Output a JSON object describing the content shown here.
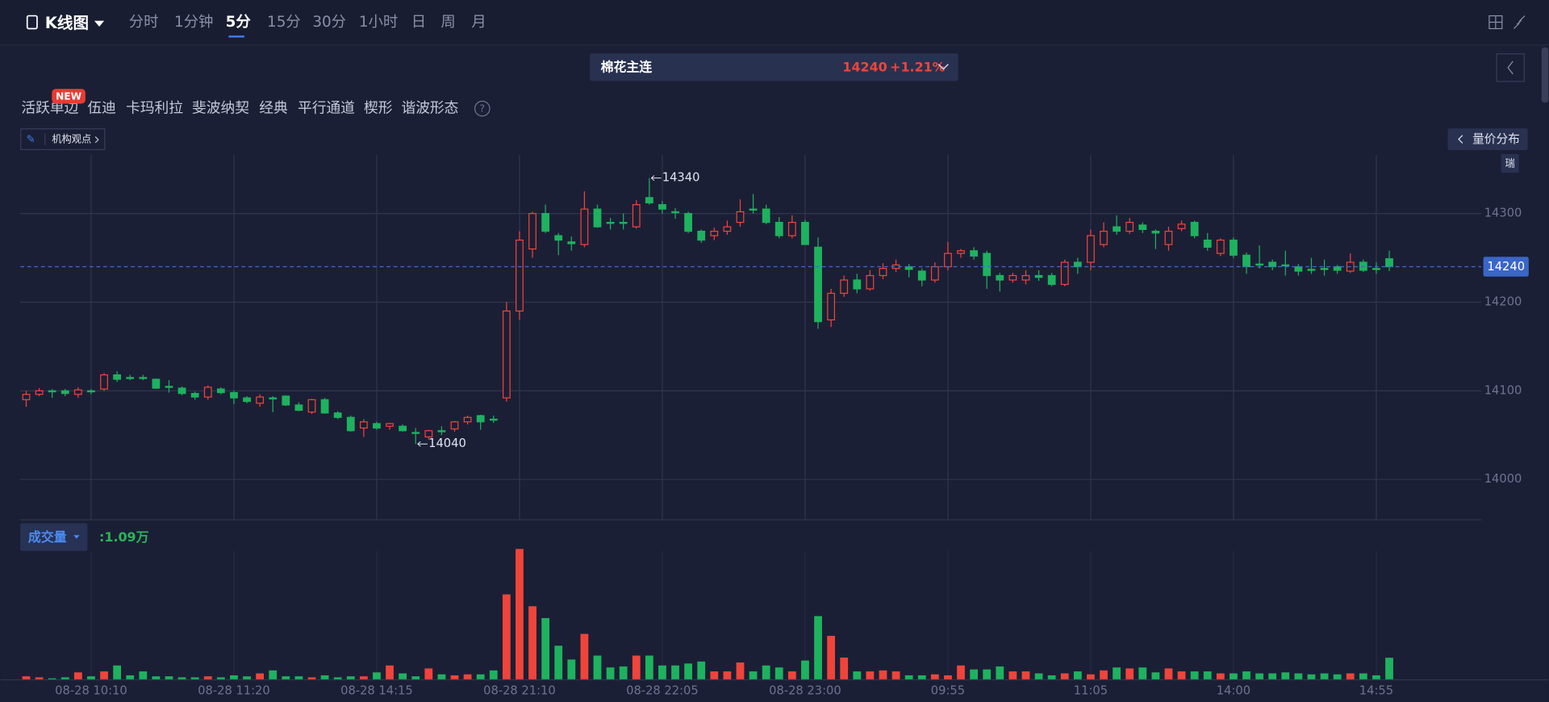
{
  "ui": {
    "chart_kind": "K线图",
    "periods": [
      "分时",
      "1分钟",
      "5分",
      "15分",
      "30分",
      "1小时",
      "日",
      "周",
      "月"
    ],
    "selected_period": "5分",
    "symbol": "棉花主连",
    "change": "+1.21%",
    "tools": [
      "活跃单边",
      "伍迪",
      "卡玛利拉",
      "斐波纳契",
      "经典",
      "平行通道",
      "楔形",
      "谐波形态"
    ],
    "new_badge": "NEW",
    "help": "?",
    "opinion": "机构观点",
    "profile": "量价分布",
    "side_tag": "瑞",
    "volume_title": "成交量",
    "volume_readout": ":1.09万"
  },
  "chart_data": {
    "type": "candlestick",
    "categories": [
      null,
      null,
      null,
      null,
      null,
      "08-28 10:10",
      null,
      null,
      null,
      null,
      null,
      null,
      null,
      null,
      null,
      null,
      "08-28 11:20",
      null,
      null,
      null,
      null,
      null,
      null,
      null,
      null,
      null,
      null,
      "08-28 14:15",
      null,
      null,
      null,
      null,
      null,
      null,
      null,
      null,
      null,
      null,
      "08-28 21:10",
      null,
      null,
      null,
      null,
      null,
      null,
      null,
      null,
      null,
      null,
      "08-28 22:05",
      null,
      null,
      null,
      null,
      null,
      null,
      null,
      null,
      null,
      null,
      "08-28 23:00",
      null,
      null,
      null,
      null,
      null,
      null,
      null,
      null,
      null,
      null,
      "09:55",
      null,
      null,
      null,
      null,
      null,
      null,
      null,
      null,
      null,
      null,
      "11:05",
      null,
      null,
      null,
      null,
      null,
      null,
      null,
      null,
      null,
      null,
      "14:00",
      null,
      null,
      null,
      null,
      null,
      null,
      null,
      null,
      null,
      null,
      "14:55",
      null
    ],
    "open": [
      14090,
      14096,
      14100,
      14100,
      14096,
      14100,
      14102,
      14118,
      14115,
      14115,
      14113,
      14105,
      14103,
      14097,
      14093,
      14102,
      14098,
      14092,
      14086,
      14092,
      14094,
      14084,
      14076,
      14090,
      14075,
      14070,
      14058,
      14063,
      14060,
      14060,
      14053,
      14048,
      14055,
      14057,
      14065,
      14072,
      14068,
      14092,
      14190,
      14260,
      14300,
      14275,
      14268,
      14265,
      14305,
      14290,
      14290,
      14285,
      14318,
      14310,
      14302,
      14300,
      14280,
      14275,
      14280,
      14290,
      14305,
      14305,
      14290,
      14275,
      14290,
      14262,
      14180,
      14210,
      14225,
      14215,
      14230,
      14238,
      14240,
      14235,
      14225,
      14240,
      14255,
      14258,
      14255,
      14230,
      14225,
      14225,
      14230,
      14230,
      14220,
      14245,
      14245,
      14265,
      14285,
      14280,
      14287,
      14280,
      14265,
      14283,
      14290,
      14270,
      14255,
      14270,
      14253,
      14243,
      14245,
      14242,
      14240,
      14237,
      14238,
      14240,
      14235,
      14245,
      14238,
      14249
    ],
    "high": [
      14100,
      14103,
      14102,
      14102,
      14104,
      14102,
      14120,
      14122,
      14118,
      14118,
      14114,
      14112,
      14105,
      14099,
      14106,
      14104,
      14100,
      14094,
      14096,
      14094,
      14095,
      14087,
      14091,
      14092,
      14077,
      14072,
      14068,
      14065,
      14064,
      14062,
      14058,
      14056,
      14060,
      14066,
      14072,
      14073,
      14072,
      14200,
      14280,
      14302,
      14310,
      14278,
      14274,
      14325,
      14310,
      14295,
      14300,
      14315,
      14340,
      14314,
      14306,
      14302,
      14282,
      14284,
      14292,
      14316,
      14322,
      14310,
      14296,
      14298,
      14293,
      14273,
      14215,
      14230,
      14232,
      14236,
      14244,
      14248,
      14243,
      14238,
      14245,
      14268,
      14260,
      14262,
      14258,
      14233,
      14233,
      14236,
      14236,
      14233,
      14248,
      14250,
      14282,
      14290,
      14298,
      14295,
      14290,
      14282,
      14285,
      14292,
      14292,
      14278,
      14272,
      14273,
      14256,
      14264,
      14248,
      14258,
      14243,
      14250,
      14248,
      14242,
      14255,
      14248,
      14245,
      14258
    ],
    "low": [
      14082,
      14094,
      14092,
      14094,
      14092,
      14096,
      14100,
      14110,
      14112,
      14112,
      14102,
      14098,
      14095,
      14090,
      14090,
      14096,
      14085,
      14086,
      14082,
      14076,
      14083,
      14077,
      14074,
      14074,
      14068,
      14054,
      14048,
      14056,
      14056,
      14054,
      14040,
      14045,
      14050,
      14054,
      14062,
      14056,
      14064,
      14088,
      14180,
      14250,
      14278,
      14253,
      14258,
      14262,
      14284,
      14282,
      14282,
      14283,
      14310,
      14300,
      14294,
      14278,
      14267,
      14270,
      14276,
      14285,
      14300,
      14288,
      14272,
      14272,
      14265,
      14170,
      14172,
      14206,
      14210,
      14213,
      14226,
      14234,
      14228,
      14218,
      14222,
      14236,
      14250,
      14248,
      14215,
      14212,
      14222,
      14220,
      14224,
      14218,
      14218,
      14232,
      14236,
      14262,
      14276,
      14277,
      14278,
      14260,
      14258,
      14280,
      14272,
      14258,
      14252,
      14250,
      14232,
      14238,
      14236,
      14230,
      14230,
      14232,
      14230,
      14232,
      14233,
      14234,
      14232,
      14235
    ],
    "close": [
      14096,
      14100,
      14100,
      14097,
      14101,
      14100,
      14118,
      14113,
      14115,
      14115,
      14103,
      14105,
      14097,
      14093,
      14104,
      14098,
      14092,
      14088,
      14093,
      14092,
      14084,
      14078,
      14090,
      14075,
      14070,
      14055,
      14065,
      14058,
      14063,
      14055,
      14053,
      14055,
      14055,
      14065,
      14070,
      14065,
      14068,
      14190,
      14270,
      14300,
      14280,
      14270,
      14266,
      14305,
      14285,
      14290,
      14290,
      14310,
      14312,
      14305,
      14302,
      14280,
      14270,
      14280,
      14285,
      14302,
      14305,
      14290,
      14275,
      14290,
      14265,
      14178,
      14210,
      14225,
      14215,
      14230,
      14238,
      14242,
      14237,
      14225,
      14240,
      14255,
      14258,
      14252,
      14230,
      14225,
      14230,
      14230,
      14228,
      14220,
      14245,
      14240,
      14275,
      14280,
      14280,
      14290,
      14282,
      14278,
      14280,
      14288,
      14275,
      14262,
      14270,
      14253,
      14240,
      14243,
      14240,
      14242,
      14235,
      14237,
      14238,
      14236,
      14245,
      14236,
      14238,
      14240
    ],
    "volume": [
      0.15,
      0.1,
      0.05,
      0.1,
      0.35,
      0.15,
      0.4,
      0.7,
      0.2,
      0.4,
      0.15,
      0.15,
      0.1,
      0.1,
      0.15,
      0.1,
      0.2,
      0.15,
      0.3,
      0.45,
      0.15,
      0.15,
      0.1,
      0.2,
      0.1,
      0.15,
      0.15,
      0.35,
      0.7,
      0.3,
      0.15,
      0.55,
      0.25,
      0.2,
      0.25,
      0.25,
      0.45,
      4.3,
      6.6,
      3.7,
      3.1,
      1.7,
      1.0,
      2.3,
      1.2,
      0.6,
      0.65,
      1.2,
      1.2,
      0.7,
      0.7,
      0.8,
      0.9,
      0.4,
      0.4,
      0.85,
      0.4,
      0.7,
      0.6,
      0.4,
      0.95,
      3.2,
      2.2,
      1.1,
      0.4,
      0.4,
      0.45,
      0.4,
      0.2,
      0.2,
      0.25,
      0.2,
      0.7,
      0.5,
      0.5,
      0.65,
      0.4,
      0.4,
      0.3,
      0.2,
      0.3,
      0.4,
      0.25,
      0.45,
      0.6,
      0.55,
      0.6,
      0.35,
      0.55,
      0.4,
      0.4,
      0.4,
      0.3,
      0.3,
      0.4,
      0.3,
      0.3,
      0.35,
      0.3,
      0.25,
      0.3,
      0.25,
      0.3,
      0.3,
      0.2,
      1.09
    ],
    "ylim": [
      13955,
      14366
    ],
    "yticks": [
      14000,
      14100,
      14200,
      14300
    ],
    "volume_ylim": [
      0,
      7
    ],
    "last_price": 14240,
    "high_label": 14340,
    "low_label": 14040,
    "up_color": "#f0443a",
    "down_color": "#1eb25e",
    "grid": true
  }
}
